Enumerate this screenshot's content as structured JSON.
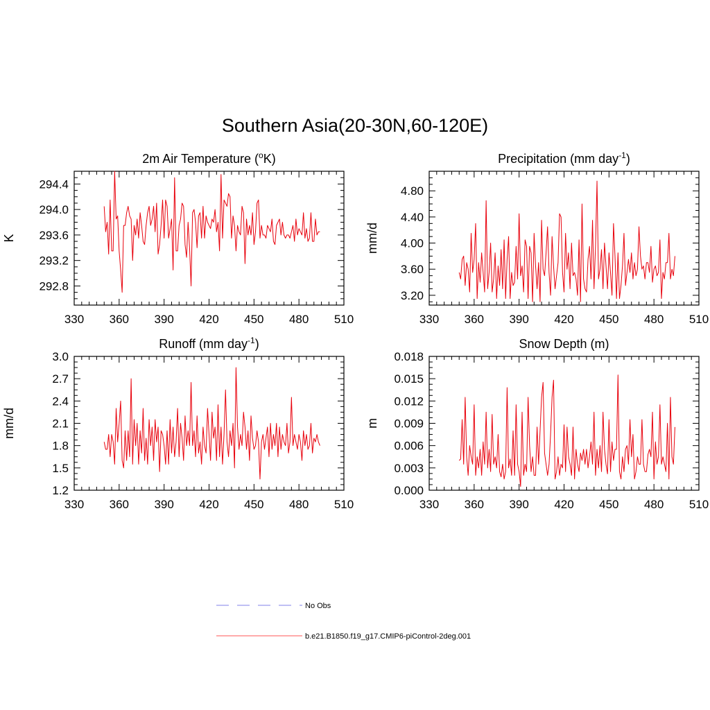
{
  "title": "Southern Asia(20-30N,60-120E)",
  "colors": {
    "model": "#e8000b",
    "obs": "#9999ee",
    "axis": "#000000"
  },
  "legend": {
    "obs_label": "No Obs",
    "model_label": "b.e21.B1850.f19_g17.CMIP6-piControl-2deg.001"
  },
  "chart_data": [
    {
      "type": "line",
      "title": "2m Air Temperature (oK)",
      "title_base": "2m Air Temperature (",
      "title_sup": "o",
      "title_tail": "K)",
      "ylabel": "K",
      "xlim": [
        330,
        510
      ],
      "ylim": [
        292.5,
        294.6
      ],
      "xticks": [
        330,
        360,
        390,
        420,
        450,
        480,
        510
      ],
      "yticks": [
        "292.8",
        "293.2",
        "293.6",
        "294.0",
        "294.4"
      ],
      "x_start": 350,
      "series": [
        {
          "values": [
            294.05,
            293.65,
            293.8,
            293.3,
            294.15,
            293.35,
            293.35,
            294.6,
            293.85,
            293.9,
            293.35,
            293.05,
            292.7,
            293.75,
            293.75,
            293.95,
            294.05,
            293.9,
            293.85,
            293.2,
            293.75,
            293.6,
            293.85,
            293.55,
            293.95,
            293.75,
            293.5,
            293.45,
            293.75,
            293.95,
            294.05,
            293.75,
            293.85,
            294.05,
            293.65,
            294.1,
            293.3,
            293.45,
            293.75,
            294.15,
            293.55,
            294.15,
            294.05,
            293.55,
            293.7,
            293.85,
            293.05,
            294.5,
            293.35,
            293.35,
            293.75,
            293.85,
            294.1,
            294.05,
            293.45,
            293.25,
            293.8,
            293.4,
            292.8,
            293.95,
            294.0,
            293.8,
            293.4,
            293.9,
            293.95,
            293.55,
            294.05,
            293.55,
            293.9,
            293.8,
            293.75,
            293.7,
            293.85,
            293.8,
            294.0,
            293.65,
            293.8,
            293.35,
            294.55,
            293.55,
            294.15,
            294.1,
            294.05,
            294.25,
            294.2,
            293.55,
            293.9,
            293.75,
            293.35,
            293.75,
            293.65,
            293.6,
            294.05,
            293.95,
            293.15,
            293.85,
            293.6,
            293.75,
            293.6,
            293.95,
            293.45,
            293.65,
            294.1,
            294.15,
            293.55,
            293.75,
            293.6,
            293.6,
            293.55,
            293.75,
            293.7,
            293.65,
            293.85,
            293.5,
            293.45,
            293.75,
            293.8,
            293.85,
            293.6,
            293.8,
            293.6,
            293.55,
            293.6,
            293.6,
            293.55,
            293.65,
            293.75,
            293.5,
            293.85,
            293.6,
            293.7,
            293.65,
            293.6,
            293.95,
            293.55,
            293.7,
            293.5,
            293.55,
            293.95,
            293.5,
            293.5,
            293.85,
            293.6,
            293.65,
            293.65
          ]
        }
      ]
    },
    {
      "type": "line",
      "title": "Precipitation (mm day-1)",
      "title_base": "Precipitation (mm day",
      "title_sup": "-1",
      "title_tail": ")",
      "ylabel": "mm/d",
      "xlim": [
        330,
        510
      ],
      "ylim": [
        3.05,
        5.1
      ],
      "xticks": [
        330,
        360,
        390,
        420,
        450,
        480,
        510
      ],
      "yticks": [
        "3.20",
        "3.60",
        "4.00",
        "4.40",
        "4.80"
      ],
      "x_start": 350,
      "series": [
        {
          "values": [
            3.55,
            3.45,
            3.75,
            3.8,
            3.35,
            3.7,
            3.6,
            3.25,
            4.15,
            3.55,
            3.75,
            4.3,
            3.15,
            3.7,
            3.4,
            3.85,
            3.55,
            3.25,
            4.65,
            3.3,
            3.55,
            4.0,
            3.25,
            3.45,
            3.85,
            3.15,
            3.65,
            3.35,
            3.9,
            3.3,
            4.05,
            3.15,
            3.75,
            4.1,
            3.15,
            3.55,
            3.35,
            3.4,
            3.95,
            3.45,
            4.45,
            3.5,
            3.65,
            3.25,
            4.05,
            3.95,
            3.15,
            3.95,
            3.85,
            3.1,
            4.15,
            3.65,
            3.3,
            3.7,
            3.1,
            4.35,
            3.6,
            3.5,
            3.85,
            4.25,
            3.55,
            3.2,
            4.1,
            3.65,
            3.3,
            3.5,
            3.7,
            4.45,
            4.4,
            3.55,
            3.25,
            4.15,
            3.6,
            3.85,
            3.3,
            4.0,
            3.5,
            3.55,
            3.45,
            3.2,
            4.05,
            3.1,
            4.6,
            3.45,
            3.3,
            3.25,
            3.75,
            3.95,
            3.45,
            4.35,
            3.3,
            3.95,
            4.95,
            3.45,
            3.6,
            3.9,
            3.3,
            4.0,
            3.65,
            3.3,
            3.85,
            3.55,
            3.2,
            4.3,
            3.8,
            3.15,
            3.85,
            3.15,
            3.35,
            3.65,
            4.15,
            3.35,
            3.55,
            3.75,
            3.55,
            3.85,
            3.45,
            3.7,
            3.5,
            3.6,
            4.25,
            3.8,
            3.6,
            3.65,
            3.45,
            3.7,
            3.7,
            3.55,
            3.95,
            3.4,
            3.6,
            3.65,
            3.5,
            3.55,
            4.05,
            3.15,
            3.55,
            3.45,
            3.7,
            3.7,
            4.15,
            3.45,
            3.6,
            3.5,
            3.8
          ]
        }
      ]
    },
    {
      "type": "line",
      "title": "Runoff (mm day-1)",
      "title_base": "Runoff (mm day",
      "title_sup": "-1",
      "title_tail": ")",
      "ylabel": "mm/d",
      "xlim": [
        330,
        510
      ],
      "ylim": [
        1.2,
        3.0
      ],
      "xticks": [
        330,
        360,
        390,
        420,
        450,
        480,
        510
      ],
      "yticks": [
        "1.2",
        "1.5",
        "1.8",
        "2.1",
        "2.4",
        "2.7",
        "3.0"
      ],
      "x_start": 350,
      "series": [
        {
          "values": [
            1.85,
            1.75,
            1.75,
            1.95,
            1.65,
            1.95,
            1.85,
            1.55,
            2.3,
            1.85,
            2.1,
            2.4,
            1.6,
            1.5,
            2.0,
            1.6,
            2.0,
            1.65,
            2.7,
            1.55,
            2.15,
            1.8,
            2.1,
            1.55,
            2.0,
            1.7,
            2.3,
            1.6,
            1.9,
            1.55,
            2.15,
            1.8,
            2.05,
            1.6,
            2.15,
            1.85,
            2.05,
            1.45,
            2.0,
            1.95,
            1.8,
            1.55,
            2.0,
            1.55,
            2.15,
            1.7,
            2.05,
            1.65,
            1.85,
            2.3,
            1.65,
            2.1,
            1.9,
            1.6,
            2.2,
            1.8,
            2.0,
            1.8,
            2.65,
            1.8,
            2.0,
            1.65,
            2.2,
            1.7,
            1.85,
            1.55,
            2.05,
            1.8,
            1.7,
            2.3,
            1.95,
            1.6,
            2.25,
            1.9,
            2.05,
            1.6,
            2.35,
            1.65,
            2.05,
            1.55,
            1.95,
            2.55,
            1.85,
            1.65,
            2.0,
            1.8,
            2.1,
            1.5,
            2.85,
            2.05,
            1.75,
            1.95,
            1.8,
            2.25,
            2.05,
            1.75,
            2.0,
            1.6,
            2.2,
            1.9,
            1.75,
            1.8,
            2.0,
            1.85,
            1.35,
            1.85,
            1.95,
            1.75,
            1.9,
            2.05,
            1.65,
            2.1,
            1.75,
            1.95,
            1.8,
            2.1,
            1.65,
            2.05,
            1.75,
            1.95,
            1.85,
            1.8,
            2.1,
            1.7,
            1.85,
            2.45,
            1.8,
            1.95,
            1.85,
            1.75,
            1.95,
            1.85,
            1.6,
            2.0,
            1.8,
            1.95,
            1.75,
            1.8,
            2.1,
            1.7,
            1.9,
            1.85,
            1.95,
            1.85,
            1.8
          ]
        }
      ]
    },
    {
      "type": "line",
      "title": "Snow Depth (m)",
      "title_base": "Snow Depth (m)",
      "title_sup": "",
      "title_tail": "",
      "ylabel": "m",
      "xlim": [
        330,
        510
      ],
      "ylim": [
        0.0,
        0.018
      ],
      "xticks": [
        330,
        360,
        390,
        420,
        450,
        480,
        510
      ],
      "yticks": [
        "0.000",
        "0.003",
        "0.006",
        "0.009",
        "0.012",
        "0.015",
        "0.018"
      ],
      "x_start": 350,
      "series": [
        {
          "values": [
            0.004,
            0.0042,
            0.0095,
            0.0035,
            0.0125,
            0.0045,
            0.002,
            0.006,
            0.0045,
            0.0035,
            0.0115,
            0.002,
            0.0045,
            0.003,
            0.0055,
            0.002,
            0.0065,
            0.0035,
            0.0105,
            0.003,
            0.0055,
            0.0025,
            0.0102,
            0.0035,
            0.0045,
            0.003,
            0.0075,
            0.0025,
            0.0018,
            0.0035,
            0.0015,
            0.0025,
            0.0138,
            0.003,
            0.0042,
            0.002,
            0.008,
            0.002,
            0.0115,
            0.0035,
            0.0025,
            0.0005,
            0.0105,
            0.002,
            0.0035,
            0.0025,
            0.0125,
            0.006,
            0.0025,
            0.0045,
            0.002,
            0.002,
            0.0085,
            0.0035,
            0.008,
            0.0125,
            0.0145,
            0.005,
            0.0035,
            0.002,
            0.0035,
            0.0075,
            0.0125,
            0.0148,
            0.0015,
            0.0025,
            0.0045,
            0.002,
            0.0035,
            0.003,
            0.0088,
            0.0025,
            0.0085,
            0.0045,
            0.0035,
            0.002,
            0.0085,
            0.0015,
            0.0055,
            0.0035,
            0.0025,
            0.005,
            0.004,
            0.0055,
            0.0035,
            0.0055,
            0.003,
            0.0045,
            0.0065,
            0.0035,
            0.0105,
            0.002,
            0.0055,
            0.003,
            0.006,
            0.0025,
            0.0105,
            0.0055,
            0.0035,
            0.0022,
            0.0095,
            0.0025,
            0.0065,
            0.004,
            0.0055,
            0.0055,
            0.0155,
            0.0025,
            0.0015,
            0.0045,
            0.0025,
            0.0055,
            0.006,
            0.0035,
            0.0095,
            0.0045,
            0.0075,
            0.0015,
            0.0025,
            0.0045,
            0.0035,
            0.0035,
            0.0095,
            0.0035,
            0.0025,
            0.0025,
            0.0048,
            0.0055,
            0.0045,
            0.0105,
            0.0015,
            0.0065,
            0.0035,
            0.0045,
            0.0115,
            0.0035,
            0.0045,
            0.0035,
            0.0025,
            0.009,
            0.0015,
            0.0125,
            0.0045,
            0.0035,
            0.0085
          ]
        }
      ]
    }
  ]
}
